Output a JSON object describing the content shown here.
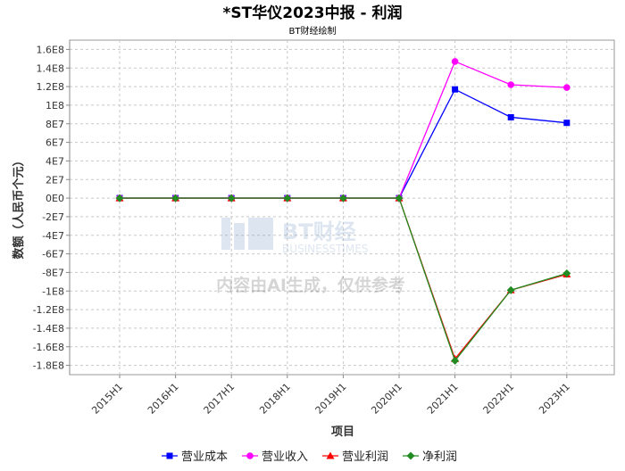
{
  "chart_data": {
    "type": "line",
    "title": "*ST华仪2023中报 - 利润",
    "subtitle": "BT财经绘制",
    "xlabel": "项目",
    "ylabel": "数额（人民币个元）",
    "categories": [
      "2015H1",
      "2016H1",
      "2017H1",
      "2018H1",
      "2019H1",
      "2020H1",
      "2021H1",
      "2022H1",
      "2023H1"
    ],
    "y_ticks": [
      "1.6E8",
      "1.4E8",
      "1.2E8",
      "1E8",
      "8E7",
      "6E7",
      "4E7",
      "2E7",
      "0E0",
      "-2E7",
      "-4E7",
      "-6E7",
      "-8E7",
      "-1E8",
      "-1.2E8",
      "-1.4E8",
      "-1.6E8",
      "-1.8E8"
    ],
    "ylim": [
      -190000000,
      170000000
    ],
    "grid": true,
    "legend_position": "bottom",
    "series": [
      {
        "name": "营业成本",
        "color": "#0000ff",
        "marker": "square",
        "values": [
          0,
          0,
          0,
          0,
          0,
          0,
          117000000,
          87000000,
          81000000
        ]
      },
      {
        "name": "营业收入",
        "color": "#ff00ff",
        "marker": "circle",
        "values": [
          0,
          0,
          0,
          0,
          0,
          0,
          147000000,
          122000000,
          119000000
        ]
      },
      {
        "name": "营业利润",
        "color": "#ff0000",
        "marker": "triangle",
        "values": [
          0,
          0,
          0,
          0,
          0,
          0,
          -173000000,
          -99000000,
          -82000000
        ]
      },
      {
        "name": "净利润",
        "color": "#228b22",
        "marker": "diamond",
        "values": [
          0,
          0,
          0,
          0,
          0,
          0,
          -175000000,
          -99000000,
          -81000000
        ]
      }
    ]
  },
  "watermark": {
    "logo_letters": "BT财经",
    "logo_sub": "BUSINESSTIMES",
    "notice": "内容由AI生成，仅供参考"
  }
}
